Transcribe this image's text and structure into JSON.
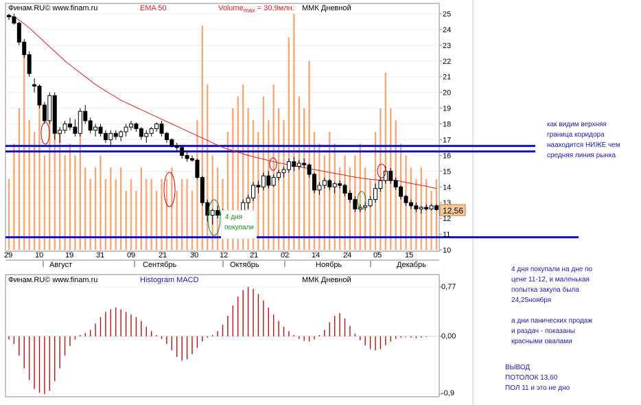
{
  "price_panel": {
    "source": "Финам.RU©  www.finam.ru",
    "indicator": "EMA 50",
    "volume_label_pre": "Volume",
    "volume_label_sub": "max",
    "volume_label_post": " = 30,9млн.",
    "instrument": "ММК Дневной",
    "last_price": "12,56",
    "ema_color": "#d42020",
    "volume_color": "#f5a87a",
    "corridor_color": "#1010cc"
  },
  "macd_panel": {
    "source": "Финам.RU©  www.finam.ru",
    "indicator": "Histogram MACD",
    "instrument": "ММК Дневной",
    "y_top": "0,77",
    "y_zero": "0,00",
    "y_bottom": "-0,9"
  },
  "annotations": {
    "buy_days": [
      "4 дня",
      "покупали"
    ],
    "corridor_note": [
      "как видим верхняя",
      "граница коридора",
      "наaходится НИЖЕ чем",
      "средняя линия рынка"
    ],
    "buy_note": [
      "4 дня покупали на дне по",
      "цене 11-12, и маленькая",
      "попытка закупа была",
      "24,25ноября"
    ],
    "panic_note": [
      "а дни панических продаж",
      "и раздач - показаны",
      "красными овалами"
    ],
    "conclusion": [
      "ВЫВОД",
      "ПОТОЛОК 13,60",
      "ПОЛ 11 и это не дно"
    ]
  },
  "chart_data": [
    {
      "type": "candlestick",
      "title": "ММК Дневной",
      "series": [
        {
          "name": "EMA 50",
          "values": [
            24.9,
            24.8,
            24.6,
            24.35,
            24.1,
            23.8,
            23.5,
            23.2,
            22.9,
            22.6,
            22.3,
            22.0,
            21.75,
            21.5,
            21.25,
            21.0,
            20.75,
            20.5,
            20.3,
            20.1,
            19.9,
            19.7,
            19.5,
            19.35,
            19.2,
            19.05,
            18.9,
            18.75,
            18.6,
            18.45,
            18.3,
            18.15,
            18.0,
            17.85,
            17.7,
            17.55,
            17.4,
            17.25,
            17.1,
            16.95,
            16.8,
            16.65,
            16.5,
            16.4,
            16.3,
            16.2,
            16.1,
            16.0,
            15.92,
            15.84,
            15.76,
            15.68,
            15.6,
            15.53,
            15.46,
            15.4,
            15.34,
            15.28,
            15.22,
            15.16,
            15.1,
            15.04,
            14.98,
            14.92,
            14.86,
            14.8,
            14.74,
            14.68,
            14.62,
            14.56,
            14.52,
            14.48,
            14.45,
            14.44,
            14.44,
            14.43,
            14.42,
            14.35,
            14.28,
            14.22,
            14.16,
            14.1,
            14.04,
            13.97,
            13.9
          ]
        },
        {
          "name": "Volume",
          "max": 30.9
        }
      ],
      "x_tick_labels": [
        "29",
        "10",
        "19",
        "31",
        "09",
        "21",
        "30",
        "12",
        "21",
        "02",
        "14",
        "24",
        "05",
        "15"
      ],
      "month_labels": [
        "Август",
        "Сентябрь",
        "Октябрь",
        "Ноябрь",
        "Декабрь"
      ],
      "y_tick_labels": [
        10,
        11,
        12,
        13,
        14,
        15,
        16,
        17,
        18,
        19,
        20,
        21,
        22,
        23,
        24,
        25
      ],
      "ylim": [
        10,
        25
      ],
      "ohlc": [
        [
          24.9,
          25.0,
          24.6,
          24.8
        ],
        [
          24.8,
          25.0,
          24.3,
          24.4
        ],
        [
          24.4,
          24.5,
          23.0,
          23.2
        ],
        [
          23.2,
          23.4,
          22.2,
          22.4
        ],
        [
          22.4,
          22.6,
          21.0,
          21.2
        ],
        [
          20.5,
          20.9,
          20.0,
          20.4
        ],
        [
          20.4,
          20.5,
          19.0,
          19.2
        ],
        [
          19.2,
          19.4,
          18.0,
          18.2
        ],
        [
          18.2,
          20.0,
          18.0,
          19.8
        ],
        [
          19.8,
          20.0,
          17.0,
          17.4
        ],
        [
          17.4,
          17.8,
          16.8,
          17.6
        ],
        [
          17.6,
          18.2,
          17.4,
          18.0
        ],
        [
          18.0,
          18.4,
          17.6,
          17.8
        ],
        [
          17.8,
          18.3,
          17.2,
          17.4
        ],
        [
          17.4,
          19.0,
          17.2,
          18.8
        ],
        [
          18.8,
          19.2,
          18.0,
          18.2
        ],
        [
          18.2,
          18.4,
          17.4,
          17.6
        ],
        [
          17.6,
          18.0,
          17.2,
          17.8
        ],
        [
          17.8,
          18.0,
          17.2,
          17.4
        ],
        [
          17.4,
          17.6,
          16.8,
          17.0
        ],
        [
          17.0,
          17.6,
          16.6,
          17.4
        ],
        [
          17.4,
          17.6,
          17.0,
          17.2
        ],
        [
          17.2,
          17.6,
          16.9,
          17.5
        ],
        [
          17.5,
          18.0,
          17.2,
          17.8
        ],
        [
          17.8,
          18.2,
          17.6,
          18.0
        ],
        [
          18.0,
          18.1,
          17.5,
          17.7
        ],
        [
          17.7,
          17.8,
          17.0,
          17.2
        ],
        [
          17.2,
          17.6,
          16.8,
          17.4
        ],
        [
          17.4,
          17.8,
          17.2,
          17.7
        ],
        [
          17.7,
          18.1,
          17.5,
          18.0
        ],
        [
          18.0,
          18.2,
          17.2,
          17.4
        ],
        [
          17.4,
          17.5,
          16.8,
          17.0
        ],
        [
          17.0,
          17.1,
          16.5,
          16.6
        ],
        [
          16.6,
          16.8,
          16.3,
          16.5
        ],
        [
          16.5,
          16.6,
          15.8,
          16.0
        ],
        [
          16.0,
          16.2,
          15.6,
          15.8
        ],
        [
          15.8,
          16.0,
          15.6,
          15.7
        ],
        [
          15.7,
          15.8,
          14.5,
          14.6
        ],
        [
          14.6,
          14.7,
          12.8,
          13.0
        ],
        [
          13.0,
          13.2,
          11.8,
          12.2
        ],
        [
          12.2,
          12.6,
          11.6,
          12.5
        ],
        [
          12.5,
          12.8,
          12.0,
          12.2
        ],
        [
          12.2,
          12.6,
          11.9,
          12.4
        ],
        [
          12.4,
          12.5,
          11.8,
          12.0
        ],
        [
          12.0,
          12.2,
          11.0,
          11.3
        ],
        [
          11.3,
          12.4,
          11.2,
          12.3
        ],
        [
          12.3,
          13.2,
          12.2,
          13.0
        ],
        [
          13.0,
          13.5,
          12.6,
          13.3
        ],
        [
          13.3,
          14.3,
          13.1,
          14.1
        ],
        [
          14.1,
          14.4,
          13.6,
          14.0
        ],
        [
          14.0,
          14.9,
          13.8,
          14.7
        ],
        [
          14.7,
          15.0,
          13.9,
          14.1
        ],
        [
          14.1,
          14.8,
          14.0,
          14.6
        ],
        [
          14.6,
          15.1,
          14.4,
          14.9
        ],
        [
          14.9,
          15.3,
          14.6,
          15.1
        ],
        [
          15.1,
          15.8,
          14.9,
          15.6
        ],
        [
          15.6,
          15.9,
          15.0,
          15.3
        ],
        [
          15.3,
          15.7,
          15.1,
          15.5
        ],
        [
          15.5,
          15.8,
          15.2,
          15.4
        ],
        [
          15.4,
          15.5,
          14.6,
          14.8
        ],
        [
          14.8,
          14.9,
          13.6,
          13.8
        ],
        [
          13.8,
          14.3,
          13.5,
          14.1
        ],
        [
          14.1,
          14.6,
          13.9,
          14.4
        ],
        [
          14.4,
          14.5,
          13.8,
          14.0
        ],
        [
          14.0,
          14.3,
          13.6,
          14.2
        ],
        [
          14.2,
          14.4,
          13.9,
          14.1
        ],
        [
          14.1,
          14.2,
          13.4,
          13.6
        ],
        [
          13.6,
          13.8,
          13.0,
          13.2
        ],
        [
          13.2,
          13.4,
          12.4,
          12.6
        ],
        [
          12.6,
          12.9,
          12.4,
          12.7
        ],
        [
          12.7,
          13.0,
          12.5,
          12.8
        ],
        [
          12.8,
          13.4,
          12.7,
          13.2
        ],
        [
          13.2,
          14.2,
          13.0,
          13.9
        ],
        [
          13.9,
          14.6,
          13.7,
          14.4
        ],
        [
          14.4,
          15.3,
          14.2,
          15.0
        ],
        [
          15.0,
          15.2,
          14.2,
          14.4
        ],
        [
          14.4,
          14.6,
          13.8,
          14.0
        ],
        [
          14.0,
          14.1,
          13.2,
          13.4
        ],
        [
          13.4,
          13.5,
          12.8,
          13.0
        ],
        [
          13.0,
          13.2,
          12.6,
          12.8
        ],
        [
          12.8,
          13.0,
          12.4,
          12.6
        ],
        [
          12.6,
          12.8,
          12.3,
          12.7
        ],
        [
          12.7,
          12.9,
          12.5,
          12.6
        ],
        [
          12.6,
          12.9,
          12.5,
          12.8
        ],
        [
          12.8,
          12.9,
          12.5,
          12.56
        ]
      ],
      "volume_relative": [
        0.3,
        0.45,
        0.6,
        0.85,
        0.55,
        0.5,
        0.7,
        0.4,
        0.55,
        0.6,
        0.5,
        0.4,
        0.45,
        0.4,
        0.55,
        0.35,
        0.3,
        0.35,
        0.4,
        0.3,
        0.35,
        0.3,
        0.35,
        0.25,
        0.3,
        0.25,
        0.35,
        0.3,
        0.3,
        0.25,
        0.3,
        0.3,
        0.35,
        0.25,
        0.3,
        0.3,
        0.25,
        0.55,
        0.95,
        0.7,
        0.4,
        0.35,
        0.3,
        0.5,
        0.6,
        0.65,
        0.7,
        0.6,
        0.55,
        0.5,
        0.65,
        0.55,
        0.7,
        0.6,
        0.55,
        0.9,
        1.0,
        0.65,
        0.6,
        0.8,
        0.5,
        0.45,
        0.4,
        0.5,
        0.45,
        0.35,
        0.4,
        0.35,
        0.4,
        0.45,
        0.35,
        0.3,
        0.5,
        0.6,
        0.75,
        0.6,
        0.55,
        0.45,
        0.4,
        0.35,
        0.3,
        0.35,
        0.3,
        0.25,
        0.3
      ],
      "corridor_upper": 16.6,
      "corridor_lower": 10.8
    },
    {
      "type": "bar",
      "title": "Histogram MACD",
      "ylim": [
        -0.9,
        0.77
      ],
      "values": [
        -0.05,
        -0.12,
        -0.3,
        -0.5,
        -0.68,
        -0.82,
        -0.88,
        -0.9,
        -0.85,
        -0.7,
        -0.5,
        -0.3,
        -0.15,
        -0.05,
        0.02,
        0.05,
        0.1,
        0.2,
        0.3,
        0.38,
        0.42,
        0.45,
        0.42,
        0.38,
        0.34,
        0.3,
        0.24,
        0.15,
        0.08,
        0.02,
        -0.04,
        -0.12,
        -0.22,
        -0.32,
        -0.38,
        -0.36,
        -0.28,
        -0.18,
        -0.08,
        -0.02,
        0.02,
        0.08,
        0.18,
        0.32,
        0.48,
        0.62,
        0.72,
        0.77,
        0.74,
        0.66,
        0.56,
        0.45,
        0.34,
        0.24,
        0.15,
        0.08,
        0.02,
        -0.04,
        -0.07,
        -0.08,
        -0.05,
        0.02,
        0.1,
        0.22,
        0.32,
        0.36,
        0.28,
        0.16,
        0.04,
        -0.06,
        -0.14,
        -0.2,
        -0.22,
        -0.2,
        -0.14,
        -0.08,
        -0.04,
        -0.02,
        -0.01,
        -0.02,
        -0.03,
        -0.02,
        -0.01,
        0.0,
        0.0
      ]
    }
  ]
}
